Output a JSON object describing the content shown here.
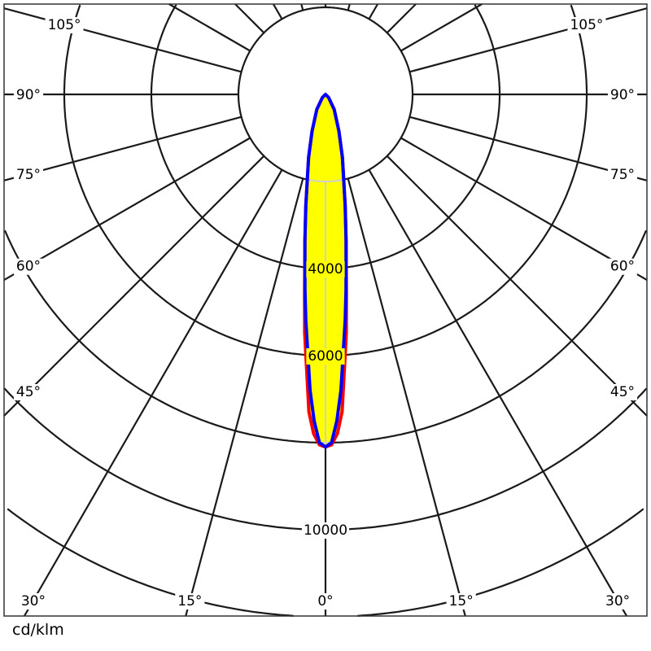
{
  "chart_data": {
    "type": "polar-line",
    "unit_label": "cd/klm",
    "radial_range": [
      0,
      12000
    ],
    "radial_rings": [
      2000,
      4000,
      6000,
      8000,
      10000,
      12000
    ],
    "radial_tick_labels": [
      {
        "value": 4000,
        "text": "4000"
      },
      {
        "value": 6000,
        "text": "6000"
      },
      {
        "value": 10000,
        "text": "10000"
      }
    ],
    "angle_step_deg": 15,
    "angle_tick_labels": [
      {
        "angle": 0,
        "text": "0°"
      },
      {
        "angle": 15,
        "text": "15°"
      },
      {
        "angle": 30,
        "text": "30°"
      },
      {
        "angle": 45,
        "text": "45°"
      },
      {
        "angle": 60,
        "text": "60°"
      },
      {
        "angle": 75,
        "text": "75°"
      },
      {
        "angle": 90,
        "text": "90°"
      },
      {
        "angle": 105,
        "text": "105°"
      }
    ],
    "grid": true,
    "fill_color": "#ffff00",
    "series": [
      {
        "color": "#ff0000",
        "angles": [
          0,
          1,
          2,
          3,
          5,
          6,
          8,
          10,
          15,
          20,
          30,
          45,
          90
        ],
        "values": [
          8100,
          8050,
          7800,
          7300,
          5500,
          4600,
          3400,
          2600,
          1500,
          900,
          400,
          100,
          0
        ]
      },
      {
        "color": "#0000ff",
        "angles": [
          0,
          1,
          2,
          3,
          5,
          6,
          8,
          10,
          15,
          20,
          30,
          45,
          90
        ],
        "values": [
          8100,
          8000,
          7500,
          6800,
          5200,
          4500,
          3400,
          2600,
          1500,
          900,
          400,
          100,
          0
        ]
      }
    ]
  }
}
